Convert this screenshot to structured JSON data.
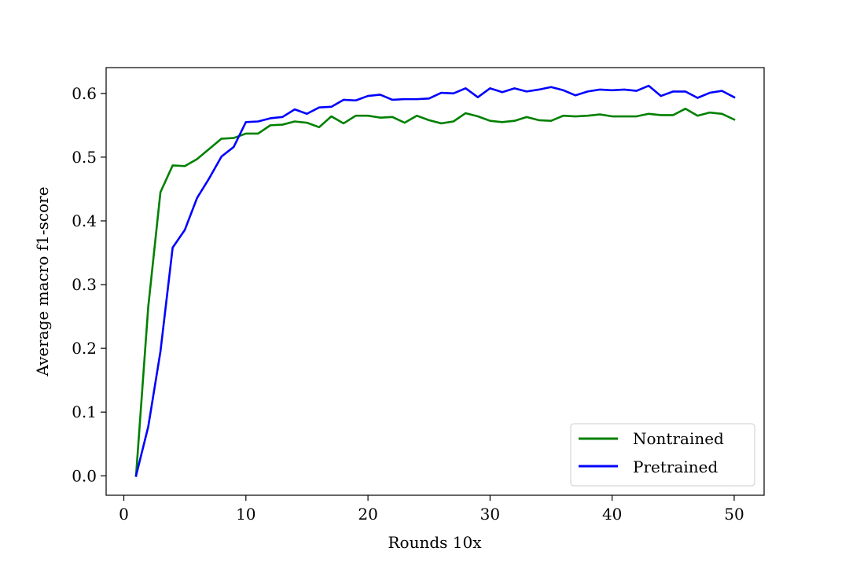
{
  "chart_data": {
    "type": "line",
    "title": "",
    "xlabel": "Rounds 10x",
    "ylabel": "Average macro f1-score",
    "xlim": [
      -1.45,
      52.45
    ],
    "ylim": [
      -0.0305,
      0.6405
    ],
    "xticks": [
      0,
      10,
      20,
      30,
      40,
      50
    ],
    "xtick_labels": [
      "0",
      "10",
      "20",
      "30",
      "40",
      "50"
    ],
    "yticks": [
      0.0,
      0.1,
      0.2,
      0.3,
      0.4,
      0.5,
      0.6
    ],
    "ytick_labels": [
      "0.0",
      "0.1",
      "0.2",
      "0.3",
      "0.4",
      "0.5",
      "0.6"
    ],
    "grid": false,
    "legend_position": "lower-right",
    "x": [
      1,
      2,
      3,
      4,
      5,
      6,
      7,
      8,
      9,
      10,
      11,
      12,
      13,
      14,
      15,
      16,
      17,
      18,
      19,
      20,
      21,
      22,
      23,
      24,
      25,
      26,
      27,
      28,
      29,
      30,
      31,
      32,
      33,
      34,
      35,
      36,
      37,
      38,
      39,
      40,
      41,
      42,
      43,
      44,
      45,
      46,
      47,
      48,
      49,
      50
    ],
    "series": [
      {
        "name": "Nontrained",
        "color": "#008000",
        "values": [
          0.0,
          0.265,
          0.445,
          0.487,
          0.486,
          0.497,
          0.513,
          0.529,
          0.53,
          0.537,
          0.537,
          0.55,
          0.551,
          0.556,
          0.554,
          0.547,
          0.564,
          0.553,
          0.565,
          0.565,
          0.562,
          0.563,
          0.554,
          0.565,
          0.558,
          0.553,
          0.556,
          0.569,
          0.564,
          0.557,
          0.555,
          0.557,
          0.563,
          0.558,
          0.557,
          0.565,
          0.564,
          0.565,
          0.567,
          0.564,
          0.564,
          0.564,
          0.568,
          0.566,
          0.566,
          0.576,
          0.565,
          0.57,
          0.568,
          0.559
        ]
      },
      {
        "name": "Pretrained",
        "color": "#0000ff",
        "values": [
          0.0,
          0.077,
          0.195,
          0.358,
          0.386,
          0.436,
          0.467,
          0.501,
          0.516,
          0.555,
          0.556,
          0.561,
          0.563,
          0.575,
          0.568,
          0.578,
          0.579,
          0.59,
          0.589,
          0.596,
          0.598,
          0.59,
          0.591,
          0.591,
          0.592,
          0.601,
          0.6,
          0.608,
          0.594,
          0.608,
          0.602,
          0.608,
          0.603,
          0.606,
          0.61,
          0.605,
          0.597,
          0.603,
          0.606,
          0.605,
          0.606,
          0.604,
          0.612,
          0.596,
          0.603,
          0.603,
          0.593,
          0.601,
          0.604,
          0.594
        ]
      }
    ]
  }
}
